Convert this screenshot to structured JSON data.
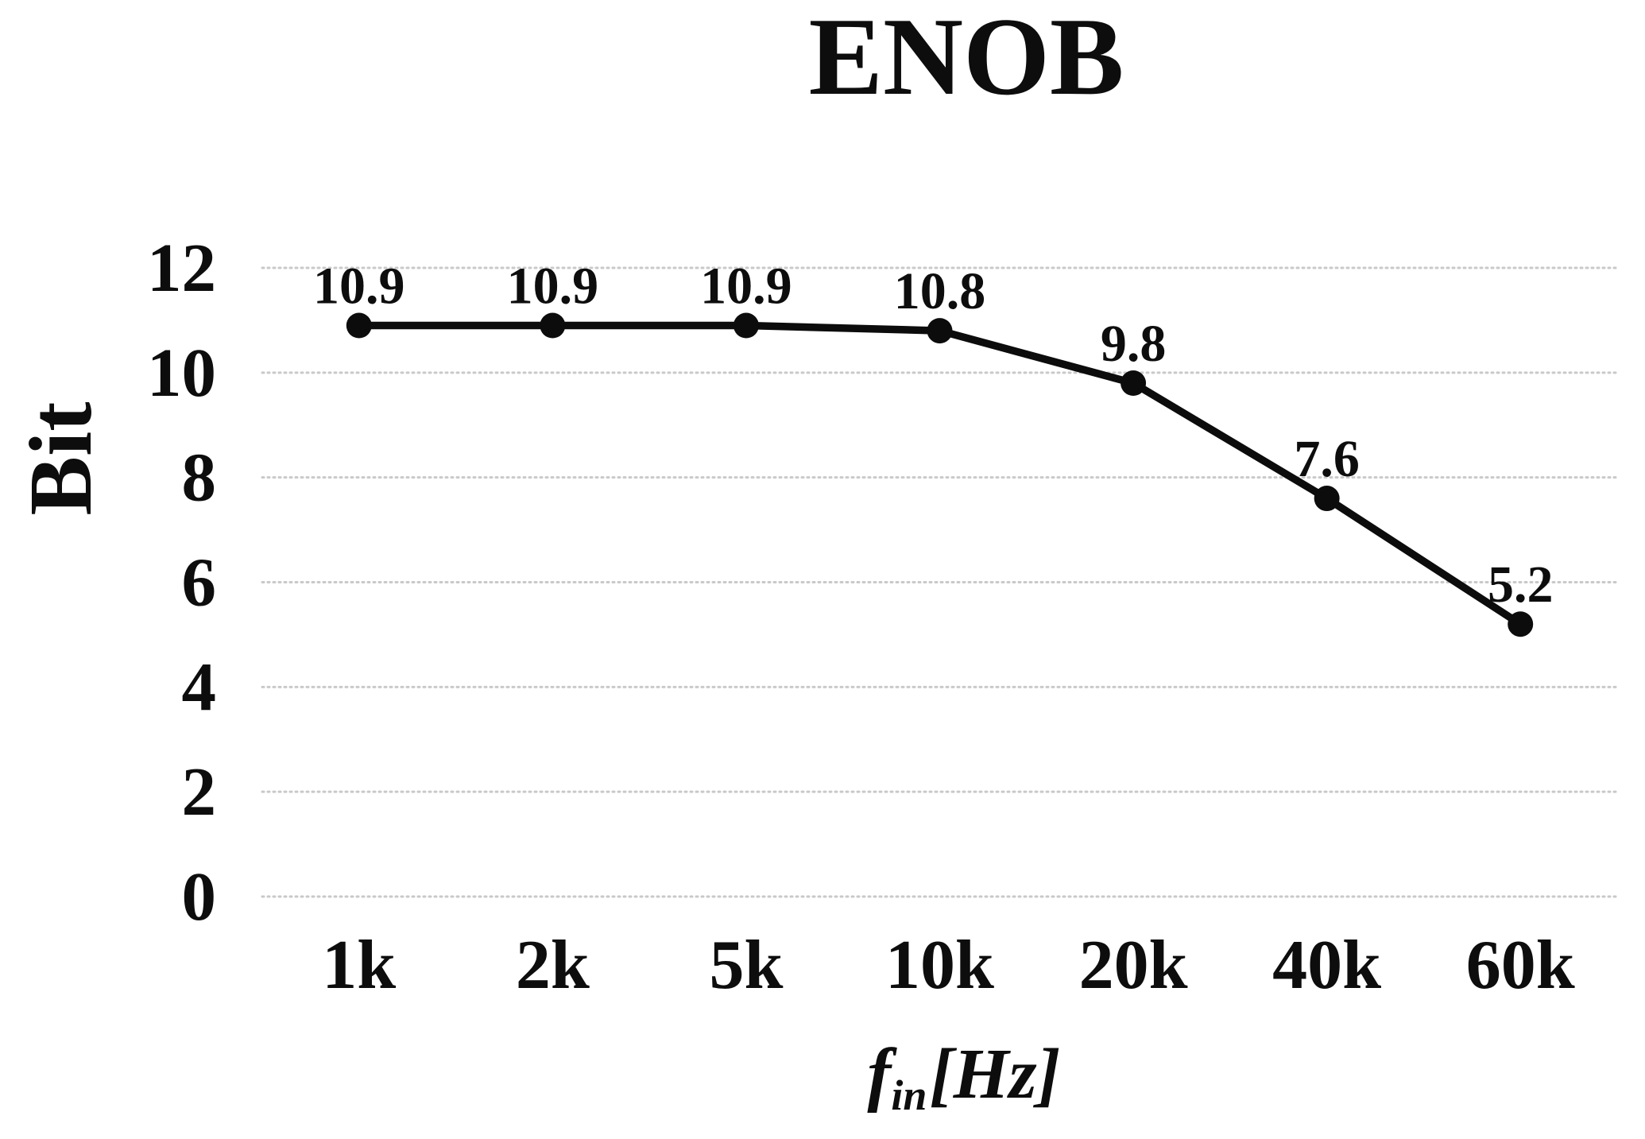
{
  "chart_data": {
    "type": "line",
    "title": "ENOB",
    "ylabel": "Bit",
    "xlabel_parts": {
      "base": "f",
      "sub": "in",
      "unit": "[Hz]"
    },
    "categories": [
      "1k",
      "2k",
      "5k",
      "10k",
      "20k",
      "40k",
      "60k"
    ],
    "series": [
      {
        "name": "ENOB",
        "values": [
          10.9,
          10.9,
          10.9,
          10.8,
          9.8,
          7.6,
          5.2
        ]
      }
    ],
    "data_labels": [
      "10.9",
      "10.9",
      "10.9",
      "10.8",
      "9.8",
      "7.6",
      "5.2"
    ],
    "yticks": [
      "0",
      "2",
      "4",
      "6",
      "8",
      "10",
      "12"
    ],
    "ylim": [
      0,
      12
    ],
    "grid": "horizontal-dotted",
    "legend": "none",
    "colors": {
      "line": "#0c0c0c",
      "marker": "#0c0c0c",
      "grid": "#c9c9c9",
      "text": "#0d0d0d",
      "background": "#ffffff"
    }
  }
}
